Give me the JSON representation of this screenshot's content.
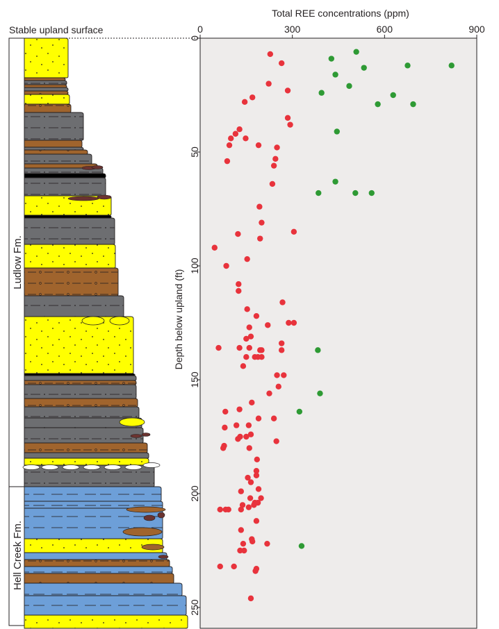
{
  "figure": {
    "surface_label": "Stable upland surface",
    "formations": [
      {
        "name": "Ludlow Fm."
      },
      {
        "name": "Hell Creek Fm."
      }
    ],
    "colors": {
      "sandstone": "#ffff00",
      "siltstone_brown": "#a0642d",
      "mudstone_gray": "#6d6e71",
      "claystone_blue": "#6d9fd8",
      "lignite": "#000000",
      "nodule": "#6b3330",
      "panel_bg": "#eeeceb",
      "ludlow_points": "#e8333c",
      "hellcreek_points": "#2e9a34"
    }
  },
  "chart_data": {
    "type": "scatter",
    "title": "Total REE concentrations (ppm)",
    "xlabel": "Total REE concentrations (ppm)",
    "ylabel": "Depth below upland (ft)",
    "xlim": [
      0,
      900
    ],
    "ylim": [
      0,
      263
    ],
    "y_inverted": true,
    "x_ticks": [
      0,
      300,
      600,
      900
    ],
    "y_ticks": [
      0,
      50,
      100,
      150,
      200,
      250
    ],
    "grid": false,
    "series": [
      {
        "color": "#e8333c",
        "points": [
          [
            228,
            7
          ],
          [
            265,
            11
          ],
          [
            223,
            20
          ],
          [
            285,
            23
          ],
          [
            170,
            26
          ],
          [
            145,
            28
          ],
          [
            285,
            35
          ],
          [
            293,
            38
          ],
          [
            128,
            40
          ],
          [
            115,
            42
          ],
          [
            100,
            44
          ],
          [
            148,
            44
          ],
          [
            95,
            47
          ],
          [
            190,
            47
          ],
          [
            250,
            48
          ],
          [
            245,
            53
          ],
          [
            88,
            54
          ],
          [
            240,
            56
          ],
          [
            235,
            64
          ],
          [
            193,
            74
          ],
          [
            200,
            81
          ],
          [
            305,
            85
          ],
          [
            123,
            86
          ],
          [
            195,
            88
          ],
          [
            47,
            92
          ],
          [
            153,
            97
          ],
          [
            85,
            100
          ],
          [
            125,
            108
          ],
          [
            125,
            111
          ],
          [
            268,
            116
          ],
          [
            153,
            119
          ],
          [
            288,
            125
          ],
          [
            305,
            125
          ],
          [
            183,
            122
          ],
          [
            220,
            126
          ],
          [
            160,
            127
          ],
          [
            165,
            131
          ],
          [
            150,
            132
          ],
          [
            265,
            134
          ],
          [
            60,
            136
          ],
          [
            128,
            136
          ],
          [
            160,
            136
          ],
          [
            200,
            137
          ],
          [
            195,
            137
          ],
          [
            265,
            137
          ],
          [
            150,
            140
          ],
          [
            200,
            140
          ],
          [
            178,
            140
          ],
          [
            188,
            140
          ],
          [
            140,
            144
          ],
          [
            250,
            148
          ],
          [
            272,
            148
          ],
          [
            255,
            153
          ],
          [
            225,
            156
          ],
          [
            168,
            160
          ],
          [
            128,
            163
          ],
          [
            82,
            164
          ],
          [
            158,
            170
          ],
          [
            118,
            170
          ],
          [
            165,
            174
          ],
          [
            150,
            175
          ],
          [
            190,
            167
          ],
          [
            240,
            167
          ],
          [
            130,
            175
          ],
          [
            80,
            171
          ],
          [
            123,
            176
          ],
          [
            78,
            179
          ],
          [
            160,
            180
          ],
          [
            248,
            177
          ],
          [
            75,
            180
          ],
          [
            185,
            185
          ],
          [
            183,
            190
          ],
          [
            183,
            192
          ],
          [
            155,
            193
          ],
          [
            165,
            195
          ],
          [
            190,
            198
          ],
          [
            133,
            199
          ],
          [
            163,
            202
          ],
          [
            198,
            202
          ],
          [
            178,
            204
          ],
          [
            138,
            205
          ],
          [
            188,
            204
          ],
          [
            175,
            205
          ],
          [
            83,
            207
          ],
          [
            65,
            207
          ],
          [
            158,
            206
          ],
          [
            133,
            207
          ],
          [
            92,
            207
          ],
          [
            183,
            212
          ],
          [
            133,
            216
          ],
          [
            168,
            220
          ],
          [
            170,
            221
          ],
          [
            140,
            222
          ],
          [
            218,
            222
          ],
          [
            130,
            225
          ],
          [
            143,
            225
          ],
          [
            65,
            232
          ],
          [
            110,
            232
          ],
          [
            183,
            233
          ],
          [
            180,
            234
          ],
          [
            165,
            246
          ]
        ]
      },
      {
        "color": "#2e9a34",
        "points": [
          [
            508,
            6
          ],
          [
            427,
            9
          ],
          [
            675,
            12
          ],
          [
            818,
            12
          ],
          [
            533,
            13
          ],
          [
            440,
            16
          ],
          [
            485,
            21
          ],
          [
            395,
            24
          ],
          [
            628,
            25
          ],
          [
            578,
            29
          ],
          [
            693,
            29
          ],
          [
            445,
            41
          ],
          [
            440,
            63
          ],
          [
            385,
            68
          ],
          [
            505,
            68
          ],
          [
            558,
            68
          ],
          [
            383,
            137
          ],
          [
            390,
            156
          ],
          [
            323,
            164
          ],
          [
            330,
            223
          ]
        ]
      }
    ]
  }
}
